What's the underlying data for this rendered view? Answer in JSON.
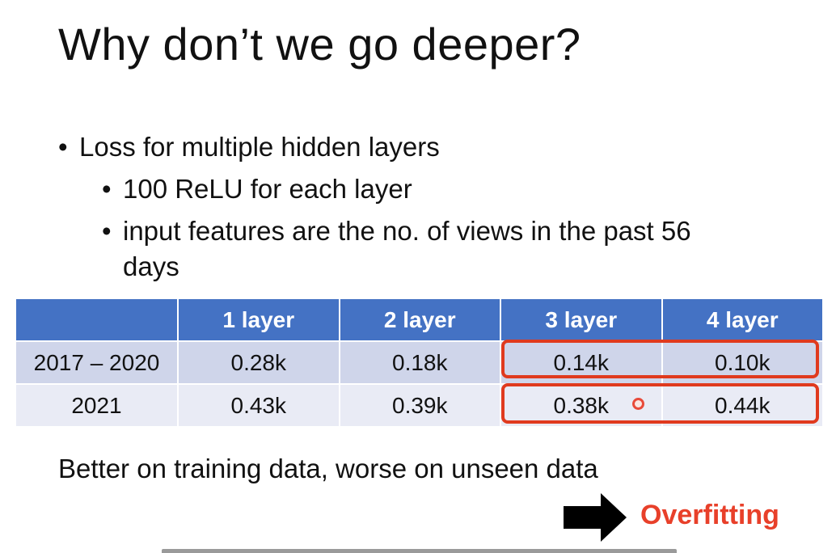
{
  "slide": {
    "title": "Why don’t we go deeper?",
    "bullets": [
      {
        "text": "Loss for multiple hidden layers"
      },
      {
        "text": "100 ReLU for each layer"
      },
      {
        "text": "input features are the no. of views in the past 56"
      },
      {
        "text": "days"
      }
    ],
    "bullet_glyph": "•"
  },
  "table": {
    "headers": [
      "",
      "1 layer",
      "2 layer",
      "3 layer",
      "4 layer"
    ],
    "rows": [
      {
        "label": "2017 – 2020",
        "values": [
          "0.28k",
          "0.18k",
          "0.14k",
          "0.10k"
        ]
      },
      {
        "label": "2021",
        "values": [
          "0.43k",
          "0.39k",
          "0.38k",
          "0.44k"
        ]
      }
    ]
  },
  "conclusion": "Better on training data, worse on unseen data",
  "overfitting_label": "Overfitting",
  "colors": {
    "header_bg": "#4472c4",
    "row1_bg": "#cfd5ea",
    "row2_bg": "#e9ebf5",
    "highlight": "#e03a1e",
    "overfitting_text": "#e8402a"
  }
}
